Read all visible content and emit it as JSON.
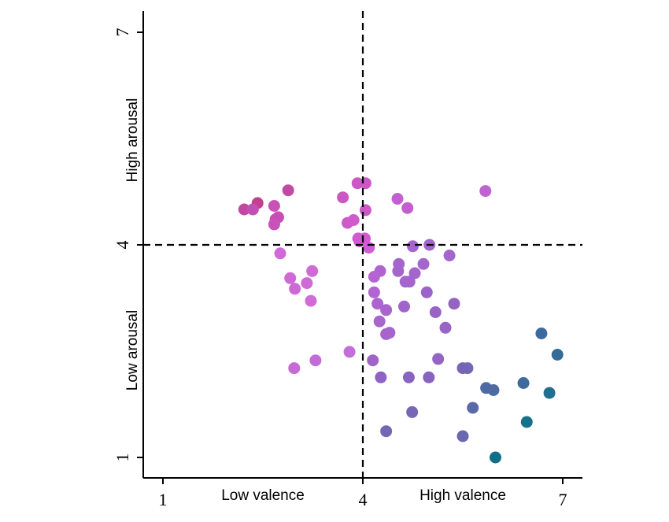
{
  "chart_data": {
    "type": "scatter",
    "title": "",
    "xlim": [
      0.7,
      7.3
    ],
    "ylim": [
      0.7,
      7.3
    ],
    "x_ticks": [
      1,
      4,
      7
    ],
    "y_ticks": [
      1,
      4,
      7
    ],
    "x_labels": {
      "low": "Low valence",
      "high": "High valence"
    },
    "y_labels": {
      "low": "Low arousal",
      "high": "High arousal"
    },
    "reference_lines": {
      "x": 4,
      "y": 4,
      "style": "dashed"
    },
    "grid": false,
    "legend": "none",
    "points": [
      {
        "x": 2.42,
        "y": 4.59,
        "color": "#c2408e"
      },
      {
        "x": 2.22,
        "y": 4.5,
        "color": "#c347a1"
      },
      {
        "x": 2.88,
        "y": 4.77,
        "color": "#c14aa5"
      },
      {
        "x": 2.35,
        "y": 4.5,
        "color": "#c24fb6"
      },
      {
        "x": 2.73,
        "y": 4.39,
        "color": "#c84fb7"
      },
      {
        "x": 2.69,
        "y": 4.36,
        "color": "#c94db6"
      },
      {
        "x": 2.67,
        "y": 4.55,
        "color": "#c951b8"
      },
      {
        "x": 2.67,
        "y": 4.29,
        "color": "#c952b9"
      },
      {
        "x": 3.7,
        "y": 4.67,
        "color": "#cc56c2"
      },
      {
        "x": 3.92,
        "y": 4.87,
        "color": "#cc57c6"
      },
      {
        "x": 4.04,
        "y": 4.87,
        "color": "#cb56c6"
      },
      {
        "x": 4.04,
        "y": 4.49,
        "color": "#cc58c8"
      },
      {
        "x": 3.77,
        "y": 4.31,
        "color": "#cc5ac8"
      },
      {
        "x": 3.86,
        "y": 4.35,
        "color": "#cf5bcc"
      },
      {
        "x": 3.93,
        "y": 4.09,
        "color": "#d05ccd"
      },
      {
        "x": 4.03,
        "y": 4.09,
        "color": "#d05ccd"
      },
      {
        "x": 3.95,
        "y": 4.05,
        "color": "#cf5ccf"
      },
      {
        "x": 4.09,
        "y": 3.96,
        "color": "#d05ed2"
      },
      {
        "x": 4.52,
        "y": 4.65,
        "color": "#c25fd2"
      },
      {
        "x": 4.67,
        "y": 4.52,
        "color": "#c35ed1"
      },
      {
        "x": 5.84,
        "y": 4.76,
        "color": "#bf62d2"
      },
      {
        "x": 3.16,
        "y": 3.46,
        "color": "#d06ad7"
      },
      {
        "x": 2.91,
        "y": 3.53,
        "color": "#d068d6"
      },
      {
        "x": 3.24,
        "y": 3.63,
        "color": "#d06ad7"
      },
      {
        "x": 3.22,
        "y": 3.21,
        "color": "#d06bd8"
      },
      {
        "x": 2.98,
        "y": 3.38,
        "color": "#ce6ad7"
      },
      {
        "x": 2.97,
        "y": 2.26,
        "color": "#c66ad7"
      },
      {
        "x": 3.29,
        "y": 2.37,
        "color": "#c36bd7"
      },
      {
        "x": 2.76,
        "y": 3.88,
        "color": "#cf6bd8"
      },
      {
        "x": 3.8,
        "y": 2.49,
        "color": "#c26fd8"
      },
      {
        "x": 4.75,
        "y": 3.98,
        "color": "#a764cf"
      },
      {
        "x": 5.0,
        "y": 4.0,
        "color": "#a565cd"
      },
      {
        "x": 5.3,
        "y": 3.85,
        "color": "#a466cc"
      },
      {
        "x": 4.91,
        "y": 3.73,
        "color": "#a466cc"
      },
      {
        "x": 4.54,
        "y": 3.73,
        "color": "#a466cc"
      },
      {
        "x": 4.53,
        "y": 3.63,
        "color": "#a466cc"
      },
      {
        "x": 4.78,
        "y": 3.6,
        "color": "#a466cc"
      },
      {
        "x": 4.64,
        "y": 3.48,
        "color": "#a466cc"
      },
      {
        "x": 4.7,
        "y": 3.48,
        "color": "#a466cc"
      },
      {
        "x": 4.26,
        "y": 3.63,
        "color": "#b064d0"
      },
      {
        "x": 4.17,
        "y": 3.55,
        "color": "#b565d2"
      },
      {
        "x": 4.17,
        "y": 3.33,
        "color": "#b264d1"
      },
      {
        "x": 4.22,
        "y": 3.17,
        "color": "#ad64cf"
      },
      {
        "x": 4.35,
        "y": 3.08,
        "color": "#a964cd"
      },
      {
        "x": 4.25,
        "y": 2.92,
        "color": "#a964cd"
      },
      {
        "x": 4.35,
        "y": 2.74,
        "color": "#a565cc"
      },
      {
        "x": 4.4,
        "y": 2.76,
        "color": "#a565cc"
      },
      {
        "x": 4.62,
        "y": 3.13,
        "color": "#a064ca"
      },
      {
        "x": 4.96,
        "y": 3.33,
        "color": "#9c63c8"
      },
      {
        "x": 5.09,
        "y": 3.05,
        "color": "#9a63c6"
      },
      {
        "x": 5.24,
        "y": 2.83,
        "color": "#9864c5"
      },
      {
        "x": 5.37,
        "y": 3.17,
        "color": "#9564c3"
      },
      {
        "x": 5.13,
        "y": 2.39,
        "color": "#9464c4"
      },
      {
        "x": 4.15,
        "y": 2.37,
        "color": "#9e64c8"
      },
      {
        "x": 4.27,
        "y": 2.13,
        "color": "#8f63c3"
      },
      {
        "x": 4.69,
        "y": 2.13,
        "color": "#8a63c0"
      },
      {
        "x": 4.99,
        "y": 2.13,
        "color": "#8863bf"
      },
      {
        "x": 5.5,
        "y": 2.26,
        "color": "#7965b8"
      },
      {
        "x": 5.57,
        "y": 2.26,
        "color": "#7266b5"
      },
      {
        "x": 4.74,
        "y": 1.64,
        "color": "#7866b6"
      },
      {
        "x": 4.35,
        "y": 1.37,
        "color": "#7667b5"
      },
      {
        "x": 5.5,
        "y": 1.3,
        "color": "#6a68b0"
      },
      {
        "x": 5.65,
        "y": 1.7,
        "color": "#5a6aa8"
      },
      {
        "x": 5.85,
        "y": 1.98,
        "color": "#4f69a4"
      },
      {
        "x": 5.96,
        "y": 1.95,
        "color": "#4f69a4"
      },
      {
        "x": 6.41,
        "y": 2.05,
        "color": "#3e6a9d"
      },
      {
        "x": 6.68,
        "y": 2.75,
        "color": "#3d6a9d"
      },
      {
        "x": 6.92,
        "y": 2.45,
        "color": "#346c96"
      },
      {
        "x": 6.8,
        "y": 1.91,
        "color": "#226e8f"
      },
      {
        "x": 6.46,
        "y": 1.5,
        "color": "#14708b"
      },
      {
        "x": 5.99,
        "y": 1.0,
        "color": "#0f6f88"
      }
    ]
  }
}
